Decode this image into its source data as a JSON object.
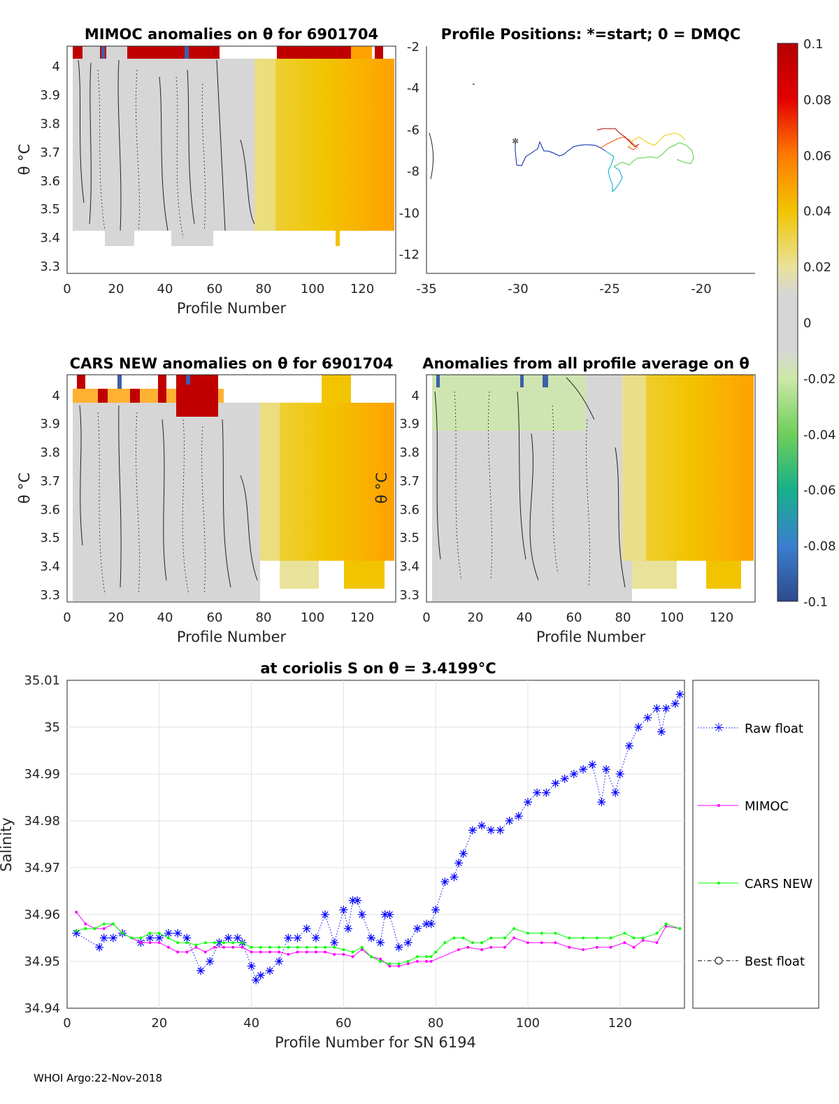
{
  "footer": "WHOI Argo:22-Nov-2018",
  "colorbar": {
    "ticks": [
      "0.1",
      "0.08",
      "0.06",
      "0.04",
      "0.02",
      "0",
      "-0.02",
      "-0.04",
      "-0.06",
      "-0.08",
      "-0.1"
    ]
  },
  "panels": {
    "mimoc": {
      "title": "MIMOC anomalies on θ  for 6901704",
      "xlabel": "Profile Number",
      "ylabel": "θ °C",
      "xticks": [
        "0",
        "20",
        "40",
        "60",
        "80",
        "100",
        "120"
      ],
      "yticks": [
        "4",
        "3.9",
        "3.8",
        "3.7",
        "3.6",
        "3.5",
        "3.4",
        "3.3"
      ]
    },
    "positions": {
      "title": "Profile Positions: *=start; 0 = DMQC",
      "xticks": [
        "-35",
        "-30",
        "-25",
        "-20"
      ],
      "yticks": [
        "-2",
        "-4",
        "-6",
        "-8",
        "-10",
        "-12"
      ]
    },
    "cars": {
      "title": "CARS NEW anomalies on θ for 6901704",
      "xlabel": "Profile Number",
      "ylabel": "θ °C",
      "xticks": [
        "0",
        "20",
        "40",
        "60",
        "80",
        "100",
        "120"
      ],
      "yticks": [
        "4",
        "3.9",
        "3.8",
        "3.7",
        "3.6",
        "3.5",
        "3.4",
        "3.3"
      ]
    },
    "allavg": {
      "title": "Anomalies from all profile average on θ",
      "xlabel": "Profile Number",
      "ylabel": "θ °C",
      "xticks": [
        "0",
        "20",
        "40",
        "60",
        "80",
        "100",
        "120"
      ],
      "yticks": [
        "4",
        "3.9",
        "3.8",
        "3.7",
        "3.6",
        "3.5",
        "3.4",
        "3.3"
      ]
    }
  },
  "chart_data": {
    "type": "line",
    "title": "at coriolis S on θ = 3.4199°C",
    "xlabel": "Profile Number for SN 6194",
    "ylabel": "Salinity",
    "xlim": [
      0,
      134
    ],
    "ylim": [
      34.94,
      35.01
    ],
    "xticks": [
      "0",
      "20",
      "40",
      "60",
      "80",
      "100",
      "120"
    ],
    "yticks": [
      "35.01",
      "35",
      "34.99",
      "34.98",
      "34.97",
      "34.96",
      "34.95",
      "34.94"
    ],
    "legend": [
      "Raw float",
      "MIMOC",
      "CARS NEW",
      "Best float"
    ],
    "series": [
      {
        "name": "Raw float",
        "color": "#0000ff",
        "x": [
          2,
          7,
          8,
          10,
          12,
          16,
          18,
          20,
          22,
          24,
          26,
          29,
          31,
          33,
          35,
          37,
          38,
          40,
          41,
          42,
          44,
          46,
          48,
          50,
          52,
          54,
          56,
          58,
          60,
          61,
          62,
          63,
          64,
          66,
          68,
          69,
          70,
          72,
          74,
          76,
          78,
          79,
          80,
          82,
          84,
          85,
          86,
          88,
          90,
          92,
          94,
          96,
          98,
          100,
          102,
          104,
          106,
          108,
          110,
          112,
          114,
          116,
          117,
          119,
          120,
          122,
          124,
          126,
          128,
          129,
          130,
          132,
          133
        ],
        "y": [
          34.956,
          34.953,
          34.955,
          34.955,
          34.956,
          34.954,
          34.955,
          34.955,
          34.956,
          34.956,
          34.955,
          34.948,
          34.95,
          34.954,
          34.955,
          34.955,
          34.954,
          34.949,
          34.946,
          34.947,
          34.948,
          34.95,
          34.955,
          34.955,
          34.957,
          34.955,
          34.96,
          34.954,
          34.961,
          34.957,
          34.963,
          34.963,
          34.96,
          34.955,
          34.954,
          34.96,
          34.96,
          34.953,
          34.954,
          34.957,
          34.958,
          34.958,
          34.961,
          34.967,
          34.968,
          34.971,
          34.973,
          34.978,
          34.979,
          34.978,
          34.978,
          34.98,
          34.981,
          34.984,
          34.986,
          34.986,
          34.988,
          34.989,
          34.99,
          34.991,
          34.992,
          34.984,
          34.991,
          34.986,
          34.99,
          34.996,
          35.0,
          35.002,
          35.004,
          34.999,
          35.004,
          35.005,
          35.007
        ]
      },
      {
        "name": "MIMOC",
        "color": "#ff00ff",
        "x": [
          2,
          4,
          6,
          8,
          10,
          12,
          14,
          16,
          18,
          20,
          22,
          24,
          26,
          28,
          30,
          32,
          34,
          36,
          38,
          40,
          42,
          44,
          46,
          48,
          50,
          52,
          54,
          56,
          58,
          60,
          62,
          64,
          66,
          68,
          70,
          72,
          74,
          76,
          78,
          79,
          85,
          87,
          90,
          92,
          95,
          97,
          100,
          103,
          106,
          109,
          112,
          115,
          118,
          121,
          123,
          125,
          128,
          130,
          133
        ],
        "y": [
          34.9605,
          34.958,
          34.957,
          34.957,
          34.958,
          34.956,
          34.955,
          34.954,
          34.954,
          34.954,
          34.953,
          34.952,
          34.952,
          34.953,
          34.952,
          34.953,
          34.953,
          34.953,
          34.953,
          34.952,
          34.952,
          34.952,
          34.952,
          34.9515,
          34.952,
          34.952,
          34.952,
          34.952,
          34.9515,
          34.9515,
          34.951,
          34.9525,
          34.951,
          34.9505,
          34.949,
          34.949,
          34.9495,
          34.95,
          34.95,
          34.95,
          34.9525,
          34.953,
          34.9525,
          34.953,
          34.953,
          34.955,
          34.954,
          34.954,
          34.954,
          34.953,
          34.9525,
          34.953,
          34.953,
          34.954,
          34.953,
          34.9545,
          34.954,
          34.9575,
          34.957
        ]
      },
      {
        "name": "CARS NEW",
        "color": "#00ff00",
        "x": [
          2,
          4,
          6,
          8,
          10,
          12,
          14,
          16,
          18,
          20,
          22,
          24,
          26,
          28,
          30,
          32,
          34,
          36,
          38,
          40,
          42,
          44,
          46,
          48,
          50,
          52,
          54,
          56,
          58,
          60,
          62,
          64,
          66,
          68,
          70,
          72,
          74,
          76,
          78,
          79,
          80,
          82,
          84,
          86,
          88,
          90,
          92,
          95,
          97,
          100,
          103,
          106,
          109,
          112,
          115,
          118,
          121,
          123,
          125,
          128,
          130,
          133
        ],
        "y": [
          34.9565,
          34.957,
          34.957,
          34.958,
          34.958,
          34.956,
          34.955,
          34.955,
          34.956,
          34.956,
          34.955,
          34.954,
          34.954,
          34.9535,
          34.954,
          34.954,
          34.954,
          34.954,
          34.954,
          34.953,
          34.953,
          34.953,
          34.953,
          34.953,
          34.953,
          34.953,
          34.953,
          34.953,
          34.953,
          34.9525,
          34.952,
          34.953,
          34.951,
          34.95,
          34.9495,
          34.9495,
          34.95,
          34.951,
          34.951,
          34.951,
          34.952,
          34.954,
          34.955,
          34.955,
          34.954,
          34.954,
          34.955,
          34.955,
          34.957,
          34.956,
          34.956,
          34.956,
          34.955,
          34.955,
          34.955,
          34.955,
          34.956,
          34.955,
          34.955,
          34.956,
          34.958,
          34.957
        ]
      }
    ]
  }
}
